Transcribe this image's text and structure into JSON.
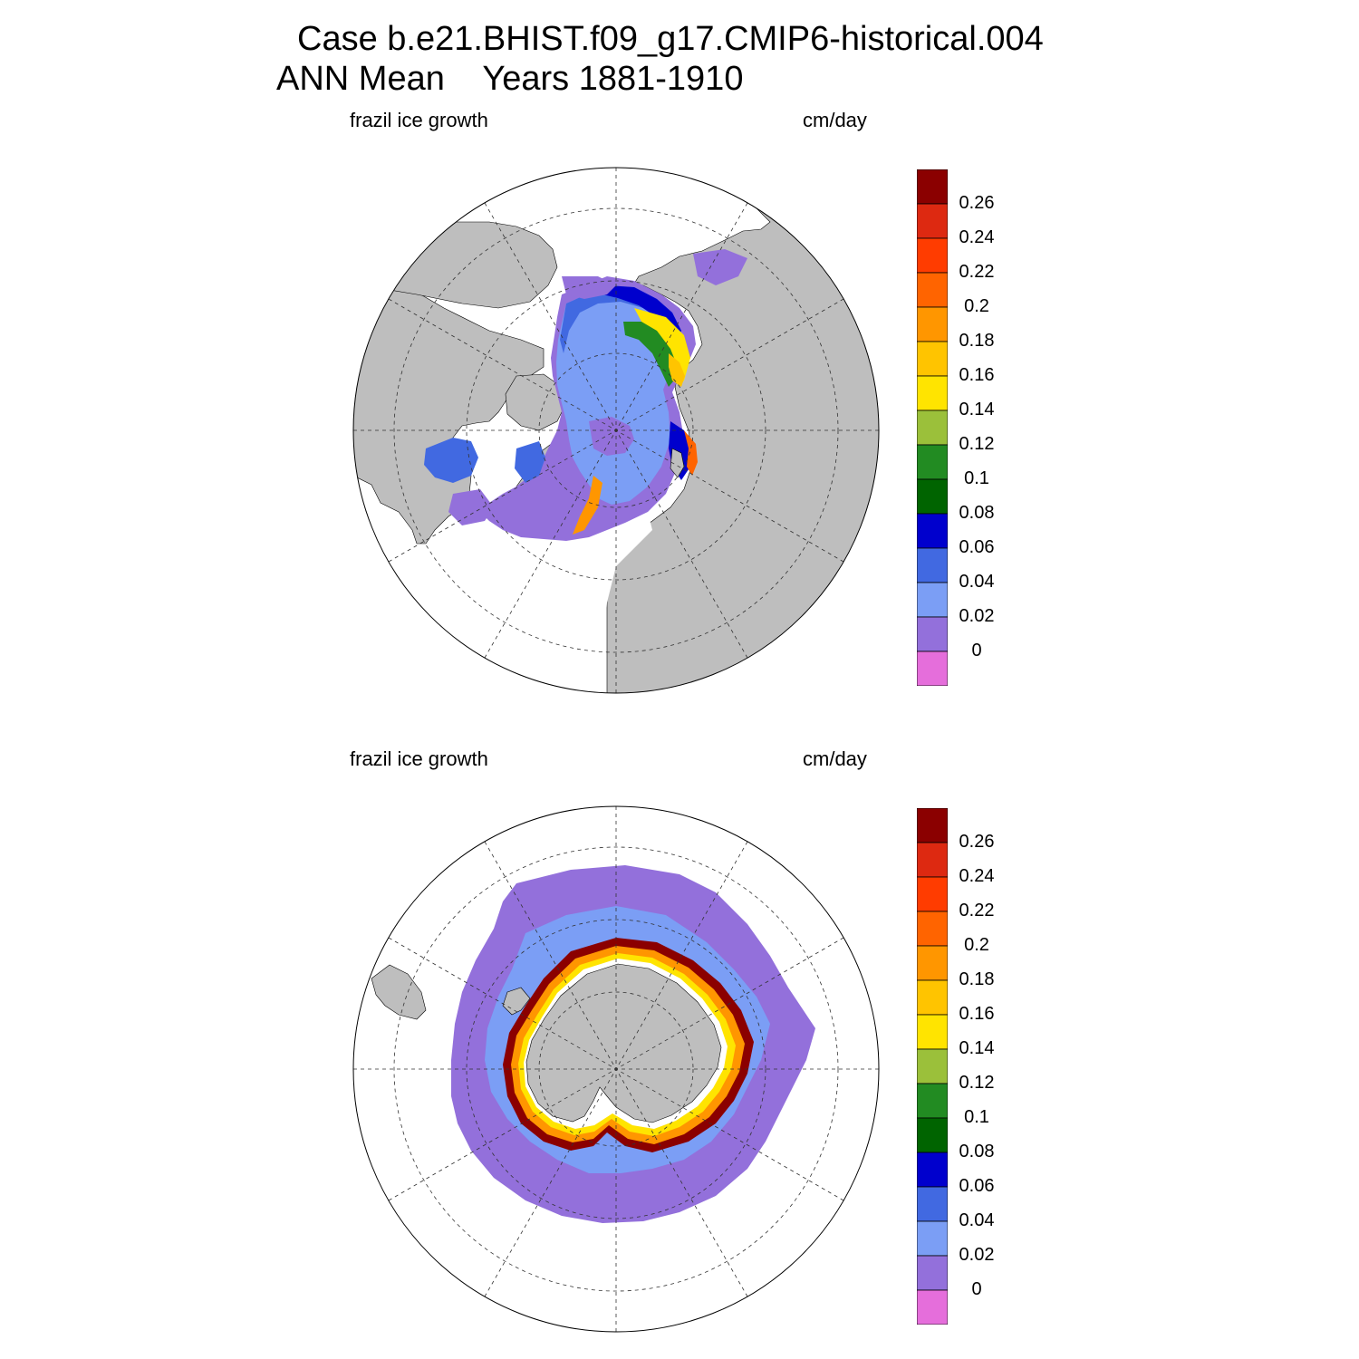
{
  "title": {
    "line1": "Case b.e21.BHIST.f09_g17.CMIP6-historical.004",
    "line2": "ANN Mean    Years 1881-1910"
  },
  "panels": [
    {
      "id": "north",
      "variable": "frazil ice growth",
      "units": "cm/day"
    },
    {
      "id": "south",
      "variable": "frazil ice growth",
      "units": "cm/day"
    }
  ],
  "colorbar": {
    "labels": [
      "0.26",
      "0.24",
      "0.22",
      "0.2",
      "0.18",
      "0.16",
      "0.14",
      "0.12",
      "0.1",
      "0.08",
      "0.06",
      "0.04",
      "0.02",
      "0"
    ],
    "colors": [
      "#8b0000",
      "#dd2911",
      "#ff3c00",
      "#ff6400",
      "#ff9600",
      "#ffc400",
      "#ffe400",
      "#9bc03a",
      "#228b22",
      "#006400",
      "#0000cd",
      "#4169e1",
      "#7b9ef5",
      "#9370db",
      "#e56edb"
    ]
  },
  "colors": {
    "land": "#bebebe",
    "ocean": "#ffffff",
    "no_ice": "#ffffff"
  }
}
